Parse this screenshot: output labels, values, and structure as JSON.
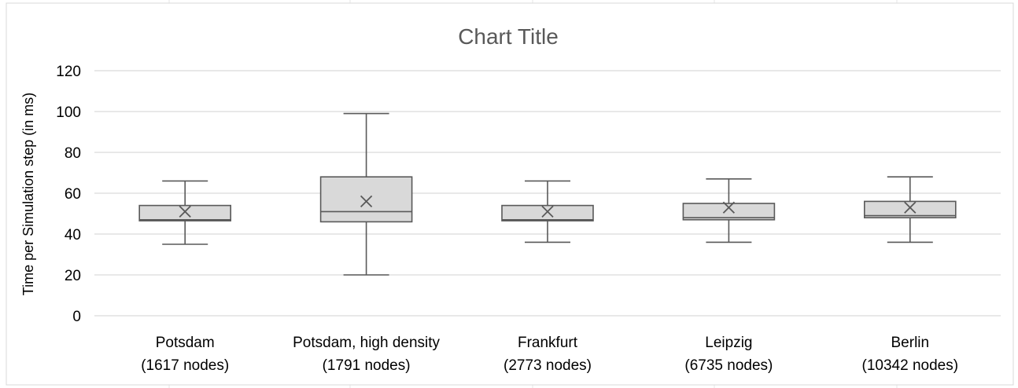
{
  "chart_data": {
    "type": "box",
    "title": "Chart Title",
    "xlabel": "",
    "ylabel": "Time per Simulation step (in ms)",
    "ylim": [
      0,
      120
    ],
    "yticks": [
      0,
      20,
      40,
      60,
      80,
      100,
      120
    ],
    "ytick_labels": [
      "0",
      "20",
      "40",
      "60",
      "80",
      "100",
      "120"
    ],
    "grid": true,
    "legend": "none",
    "categories": [
      [
        "Potsdam",
        "(1617 nodes)"
      ],
      [
        "Potsdam, high density",
        "(1791 nodes)"
      ],
      [
        "Frankfurt",
        "(2773 nodes)"
      ],
      [
        "Leipzig",
        "(6735 nodes)"
      ],
      [
        "Berlin",
        "(10342 nodes)"
      ]
    ],
    "boxes": [
      {
        "min": 35,
        "q1": 46.5,
        "median": 47,
        "q3": 54,
        "max": 66,
        "mean": 51
      },
      {
        "min": 20,
        "q1": 46,
        "median": 51,
        "q3": 68,
        "max": 99,
        "mean": 56
      },
      {
        "min": 36,
        "q1": 46.5,
        "median": 47,
        "q3": 54,
        "max": 66,
        "mean": 51
      },
      {
        "min": 36,
        "q1": 47,
        "median": 48,
        "q3": 55,
        "max": 67,
        "mean": 53
      },
      {
        "min": 36,
        "q1": 48,
        "median": 49,
        "q3": 56,
        "max": 68,
        "mean": 53
      }
    ],
    "colors": {
      "box_fill": "#d9d9d9",
      "box_stroke": "#595959",
      "grid": "#d9d9d9",
      "title": "#595959",
      "text": "#000000"
    }
  }
}
